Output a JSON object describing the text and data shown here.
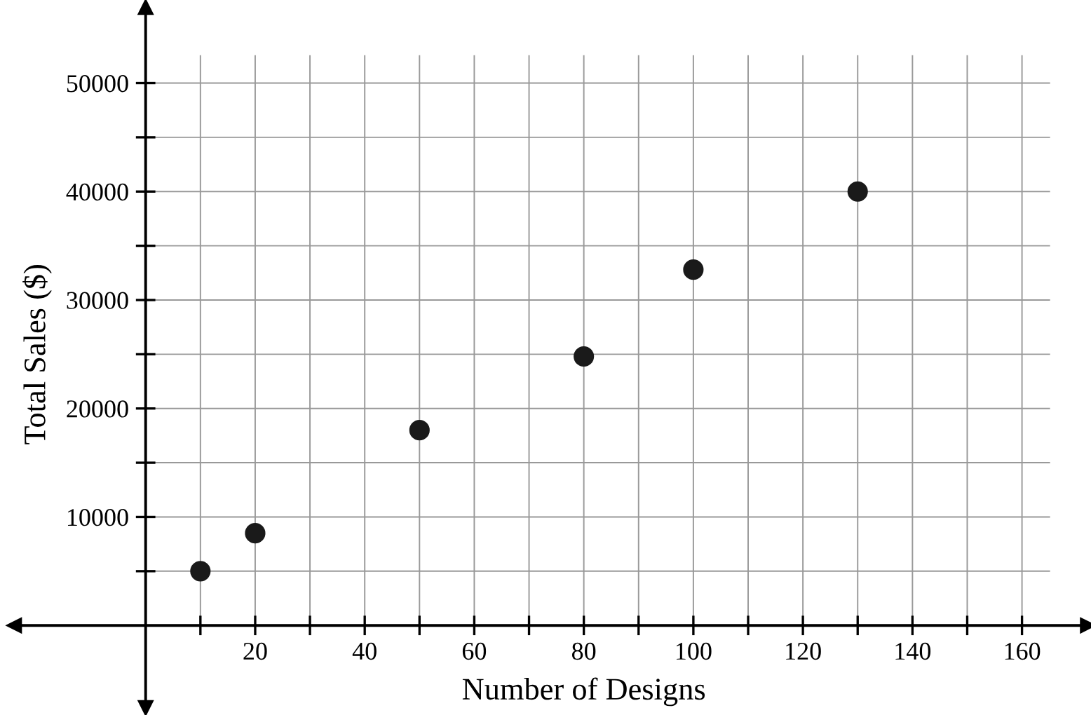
{
  "chart_data": {
    "type": "scatter",
    "xlabel": "Number of Designs",
    "ylabel": "Total Sales ($)",
    "x": [
      10,
      20,
      50,
      80,
      100,
      130
    ],
    "values": [
      5000,
      8500,
      18000,
      24800,
      32800,
      40000
    ],
    "color": "#1a1a1a",
    "marker": "circle",
    "xlim": [
      -24,
      172
    ],
    "ylim": [
      -7600,
      57000
    ],
    "xticks": [
      {
        "value": 10,
        "label": null
      },
      20,
      {
        "value": 30,
        "label": null
      },
      40,
      {
        "value": 50,
        "label": null
      },
      60,
      {
        "value": 70,
        "label": null
      },
      80,
      {
        "value": 90,
        "label": null
      },
      100,
      {
        "value": 110,
        "label": null
      },
      120,
      {
        "value": 130,
        "label": null
      },
      140,
      {
        "value": 150,
        "label": null
      },
      160
    ],
    "yticks": [
      {
        "value": 5000,
        "label": null
      },
      10000,
      {
        "value": 15000,
        "label": null
      },
      20000,
      {
        "value": 25000,
        "label": null
      },
      30000,
      {
        "value": 35000,
        "label": null
      },
      40000,
      {
        "value": 45000,
        "label": null
      },
      50000
    ],
    "grid": true
  }
}
